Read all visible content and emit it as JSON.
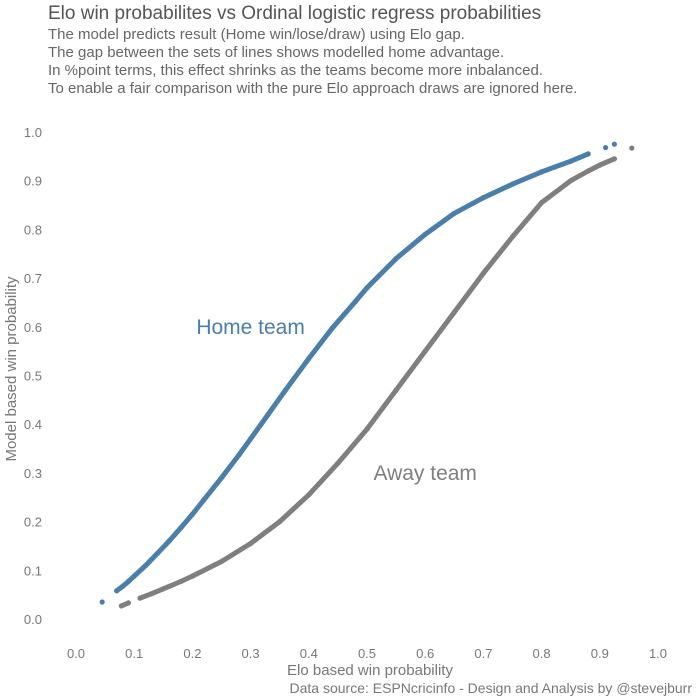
{
  "chart_data": {
    "type": "scatter",
    "title": "Elo win probabilites vs Ordinal logistic regress probabilities",
    "subtitle": [
      "The model predicts result (Home win/lose/draw) using Elo gap.",
      "The gap between the sets of lines shows modelled home advantage.",
      "In %point terms, this effect shrinks as the teams become more inbalanced.",
      "To enable a fair comparison with the pure Elo approach draws are ignored here."
    ],
    "caption": "Data source: ESPNcricinfo - Design and Analysis by @stevejburr",
    "xlabel": "Elo based win probability",
    "ylabel": "Model based win probability",
    "xlim": [
      -0.05,
      1.05
    ],
    "ylim": [
      -0.03,
      1.03
    ],
    "x_ticks": [
      "0.0",
      "0.1",
      "0.2",
      "0.3",
      "0.4",
      "0.5",
      "0.6",
      "0.7",
      "0.8",
      "0.9",
      "1.0"
    ],
    "y_ticks": [
      "0.0",
      "0.1",
      "0.2",
      "0.3",
      "0.4",
      "0.5",
      "0.6",
      "0.7",
      "0.8",
      "0.9",
      "1.0"
    ],
    "grid": false,
    "legend": "none",
    "annotations": [
      {
        "text": "Home team",
        "x": 0.3,
        "y": 0.6,
        "color": "#4a7eab"
      },
      {
        "text": "Away team",
        "x": 0.6,
        "y": 0.3,
        "color": "#7f7f7f"
      }
    ],
    "series": [
      {
        "name": "Home team",
        "color": "#4a7eab",
        "points": [
          [
            0.045,
            0.035
          ],
          [
            0.07,
            0.058
          ],
          [
            0.08,
            0.067
          ],
          [
            0.09,
            0.077
          ],
          [
            0.1,
            0.088
          ],
          [
            0.12,
            0.11
          ],
          [
            0.14,
            0.135
          ],
          [
            0.16,
            0.16
          ],
          [
            0.18,
            0.187
          ],
          [
            0.2,
            0.215
          ],
          [
            0.22,
            0.245
          ],
          [
            0.25,
            0.29
          ],
          [
            0.28,
            0.337
          ],
          [
            0.3,
            0.37
          ],
          [
            0.33,
            0.42
          ],
          [
            0.36,
            0.47
          ],
          [
            0.4,
            0.535
          ],
          [
            0.44,
            0.597
          ],
          [
            0.48,
            0.652
          ],
          [
            0.5,
            0.68
          ],
          [
            0.55,
            0.74
          ],
          [
            0.6,
            0.79
          ],
          [
            0.65,
            0.833
          ],
          [
            0.7,
            0.865
          ],
          [
            0.75,
            0.893
          ],
          [
            0.8,
            0.918
          ],
          [
            0.85,
            0.94
          ],
          [
            0.88,
            0.955
          ],
          [
            0.91,
            0.968
          ],
          [
            0.925,
            0.975
          ]
        ]
      },
      {
        "name": "Away team",
        "color": "#7f7f7f",
        "points": [
          [
            0.078,
            0.027
          ],
          [
            0.09,
            0.033
          ],
          [
            0.11,
            0.043
          ],
          [
            0.13,
            0.052
          ],
          [
            0.15,
            0.062
          ],
          [
            0.18,
            0.077
          ],
          [
            0.2,
            0.088
          ],
          [
            0.25,
            0.118
          ],
          [
            0.3,
            0.155
          ],
          [
            0.35,
            0.2
          ],
          [
            0.4,
            0.255
          ],
          [
            0.45,
            0.32
          ],
          [
            0.5,
            0.39
          ],
          [
            0.55,
            0.47
          ],
          [
            0.6,
            0.55
          ],
          [
            0.65,
            0.63
          ],
          [
            0.7,
            0.71
          ],
          [
            0.75,
            0.785
          ],
          [
            0.8,
            0.855
          ],
          [
            0.85,
            0.9
          ],
          [
            0.88,
            0.92
          ],
          [
            0.9,
            0.932
          ],
          [
            0.925,
            0.945
          ],
          [
            0.955,
            0.967
          ]
        ]
      }
    ]
  }
}
